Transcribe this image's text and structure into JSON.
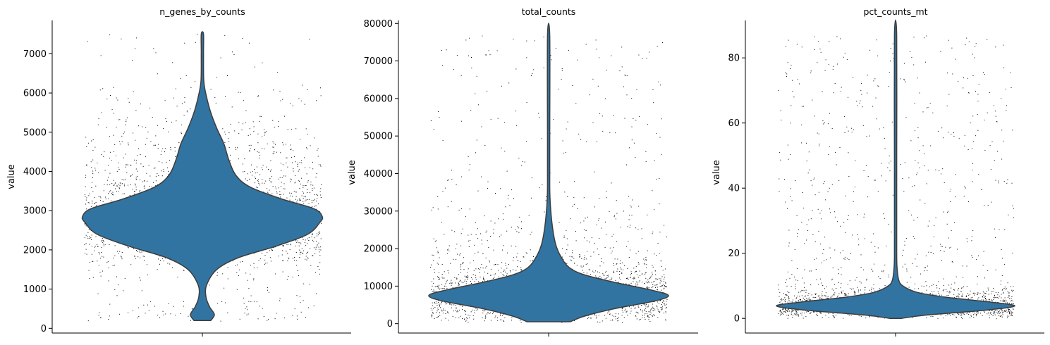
{
  "chart_data": [
    {
      "type": "violin",
      "title": "n_genes_by_counts",
      "ylabel": "value",
      "xlabel": "",
      "ylim": [
        -120,
        7850
      ],
      "yticks": [
        0,
        1000,
        2000,
        3000,
        4000,
        5000,
        6000,
        7000
      ],
      "ytick_labels": [
        "0",
        "1000",
        "2000",
        "3000",
        "4000",
        "5000",
        "6000",
        "7000"
      ],
      "data_min": 200,
      "data_max": 7500,
      "density_profile": [
        {
          "y": 200,
          "half_width": 0.07
        },
        {
          "y": 350,
          "half_width": 0.1
        },
        {
          "y": 550,
          "half_width": 0.06
        },
        {
          "y": 800,
          "half_width": 0.03
        },
        {
          "y": 1100,
          "half_width": 0.035
        },
        {
          "y": 1500,
          "half_width": 0.12
        },
        {
          "y": 1800,
          "half_width": 0.3
        },
        {
          "y": 2100,
          "half_width": 0.62
        },
        {
          "y": 2400,
          "half_width": 0.88
        },
        {
          "y": 2700,
          "half_width": 0.98
        },
        {
          "y": 2850,
          "half_width": 1.0
        },
        {
          "y": 3050,
          "half_width": 0.93
        },
        {
          "y": 3300,
          "half_width": 0.66
        },
        {
          "y": 3600,
          "half_width": 0.4
        },
        {
          "y": 3900,
          "half_width": 0.28
        },
        {
          "y": 4300,
          "half_width": 0.22
        },
        {
          "y": 4700,
          "half_width": 0.18
        },
        {
          "y": 5100,
          "half_width": 0.12
        },
        {
          "y": 5500,
          "half_width": 0.07
        },
        {
          "y": 5900,
          "half_width": 0.035
        },
        {
          "y": 6300,
          "half_width": 0.012
        },
        {
          "y": 7000,
          "half_width": 0.005
        },
        {
          "y": 7500,
          "half_width": 0.004
        }
      ]
    },
    {
      "type": "violin",
      "title": "total_counts",
      "ylabel": "value",
      "xlabel": "",
      "ylim": [
        -2500,
        80800
      ],
      "yticks": [
        0,
        10000,
        20000,
        30000,
        40000,
        50000,
        60000,
        70000,
        80000
      ],
      "ytick_labels": [
        "0",
        "10000",
        "20000",
        "30000",
        "40000",
        "50000",
        "60000",
        "70000",
        "80000"
      ],
      "data_min": 500,
      "data_max": 76700,
      "density_profile": [
        {
          "y": 500,
          "half_width": 0.18
        },
        {
          "y": 2000,
          "half_width": 0.3
        },
        {
          "y": 4000,
          "half_width": 0.55
        },
        {
          "y": 6000,
          "half_width": 0.88
        },
        {
          "y": 7500,
          "half_width": 1.0
        },
        {
          "y": 9000,
          "half_width": 0.85
        },
        {
          "y": 11000,
          "half_width": 0.55
        },
        {
          "y": 13000,
          "half_width": 0.3
        },
        {
          "y": 15000,
          "half_width": 0.17
        },
        {
          "y": 18000,
          "half_width": 0.1
        },
        {
          "y": 21000,
          "half_width": 0.06
        },
        {
          "y": 25000,
          "half_width": 0.035
        },
        {
          "y": 30000,
          "half_width": 0.018
        },
        {
          "y": 35000,
          "half_width": 0.01
        },
        {
          "y": 40000,
          "half_width": 0.006
        },
        {
          "y": 50000,
          "half_width": 0.005
        },
        {
          "y": 76700,
          "half_width": 0.004
        }
      ]
    },
    {
      "type": "violin",
      "title": "pct_counts_mt",
      "ylabel": "value",
      "xlabel": "",
      "ylim": [
        -4.5,
        91.5
      ],
      "yticks": [
        0,
        20,
        40,
        60,
        80
      ],
      "ytick_labels": [
        "0",
        "20",
        "40",
        "60",
        "80"
      ],
      "data_min": 0,
      "data_max": 87,
      "density_profile": [
        {
          "y": 0,
          "half_width": 0.05
        },
        {
          "y": 1,
          "half_width": 0.25
        },
        {
          "y": 2.5,
          "half_width": 0.75
        },
        {
          "y": 3.8,
          "half_width": 1.0
        },
        {
          "y": 5,
          "half_width": 0.8
        },
        {
          "y": 6.5,
          "half_width": 0.42
        },
        {
          "y": 8,
          "half_width": 0.18
        },
        {
          "y": 10,
          "half_width": 0.06
        },
        {
          "y": 12,
          "half_width": 0.025
        },
        {
          "y": 16,
          "half_width": 0.012
        },
        {
          "y": 20,
          "half_width": 0.008
        },
        {
          "y": 30,
          "half_width": 0.006
        },
        {
          "y": 50,
          "half_width": 0.005
        },
        {
          "y": 87,
          "half_width": 0.004
        }
      ]
    }
  ],
  "colors": {
    "violin_fill": "#3274a1",
    "violin_edge": "#3d3d3d",
    "points": "#000000",
    "axis": "#000000"
  }
}
